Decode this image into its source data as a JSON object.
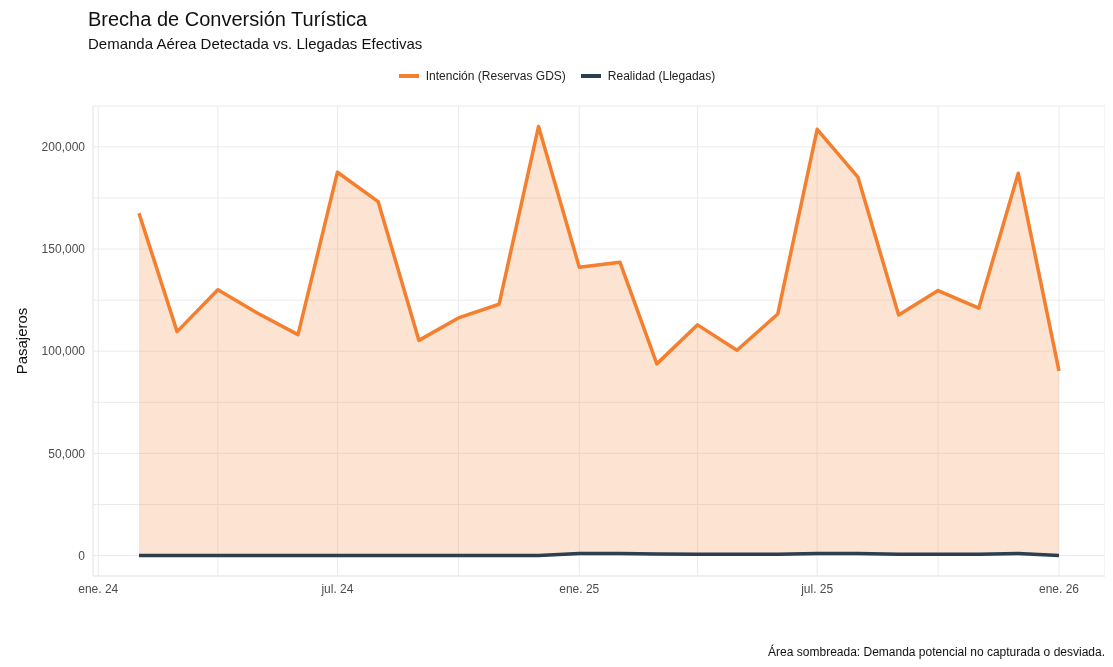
{
  "chart_data": {
    "type": "line",
    "title": "Brecha de Conversión Turística",
    "subtitle": "Demanda Aérea Detectada vs. Llegadas Efectivas",
    "ylabel": "Pasajeros",
    "x": [
      "2024-02",
      "2024-03",
      "2024-04",
      "2024-05",
      "2024-06",
      "2024-07",
      "2024-08",
      "2024-09",
      "2024-10",
      "2024-11",
      "2024-12",
      "2025-01",
      "2025-02",
      "2025-03",
      "2025-04",
      "2025-05",
      "2025-06",
      "2025-07",
      "2025-08",
      "2025-09",
      "2025-10",
      "2025-11",
      "2025-12",
      "2026-01"
    ],
    "series": [
      {
        "name": "Intención (Reservas GDS)",
        "type": "area",
        "color": "#f47f2e",
        "values": [
          167500,
          109600,
          130100,
          118700,
          108100,
          187600,
          173200,
          105300,
          116300,
          123000,
          210000,
          141100,
          143500,
          93800,
          112900,
          100500,
          118200,
          208600,
          185200,
          117700,
          129700,
          121100,
          187100,
          90400
        ]
      },
      {
        "name": "Realidad (Llegadas)",
        "type": "line",
        "color": "#2c3e50",
        "values": [
          0,
          0,
          0,
          0,
          0,
          0,
          0,
          0,
          0,
          0,
          0,
          1000,
          1000,
          800,
          700,
          700,
          700,
          1000,
          1000,
          600,
          600,
          700,
          1000,
          0
        ]
      }
    ],
    "xlim": [
      "2023-12-28",
      "2026-02-05"
    ],
    "xticks": [
      {
        "value": "2024-01",
        "label": "ene. 24"
      },
      {
        "value": "2024-04",
        "label": null
      },
      {
        "value": "2024-07",
        "label": "jul. 24"
      },
      {
        "value": "2024-10",
        "label": null
      },
      {
        "value": "2025-01",
        "label": "ene. 25"
      },
      {
        "value": "2025-04",
        "label": null
      },
      {
        "value": "2025-07",
        "label": "jul. 25"
      },
      {
        "value": "2025-10",
        "label": null
      },
      {
        "value": "2026-01",
        "label": "ene. 26"
      }
    ],
    "ylim": [
      -10000,
      220000
    ],
    "yticks": [
      {
        "value": 0,
        "label": "0"
      },
      {
        "value": 25000,
        "label": null
      },
      {
        "value": 50000,
        "label": "50,000"
      },
      {
        "value": 75000,
        "label": null
      },
      {
        "value": 100000,
        "label": "100,000"
      },
      {
        "value": 125000,
        "label": null
      },
      {
        "value": 150000,
        "label": "150,000"
      },
      {
        "value": 175000,
        "label": null
      },
      {
        "value": 200000,
        "label": "200,000"
      }
    ],
    "grid": true,
    "legend": "top",
    "marker": "none",
    "line_style": "solid",
    "annotations": [
      "Área sombreada: Demanda potencial no capturada o desviada."
    ]
  }
}
